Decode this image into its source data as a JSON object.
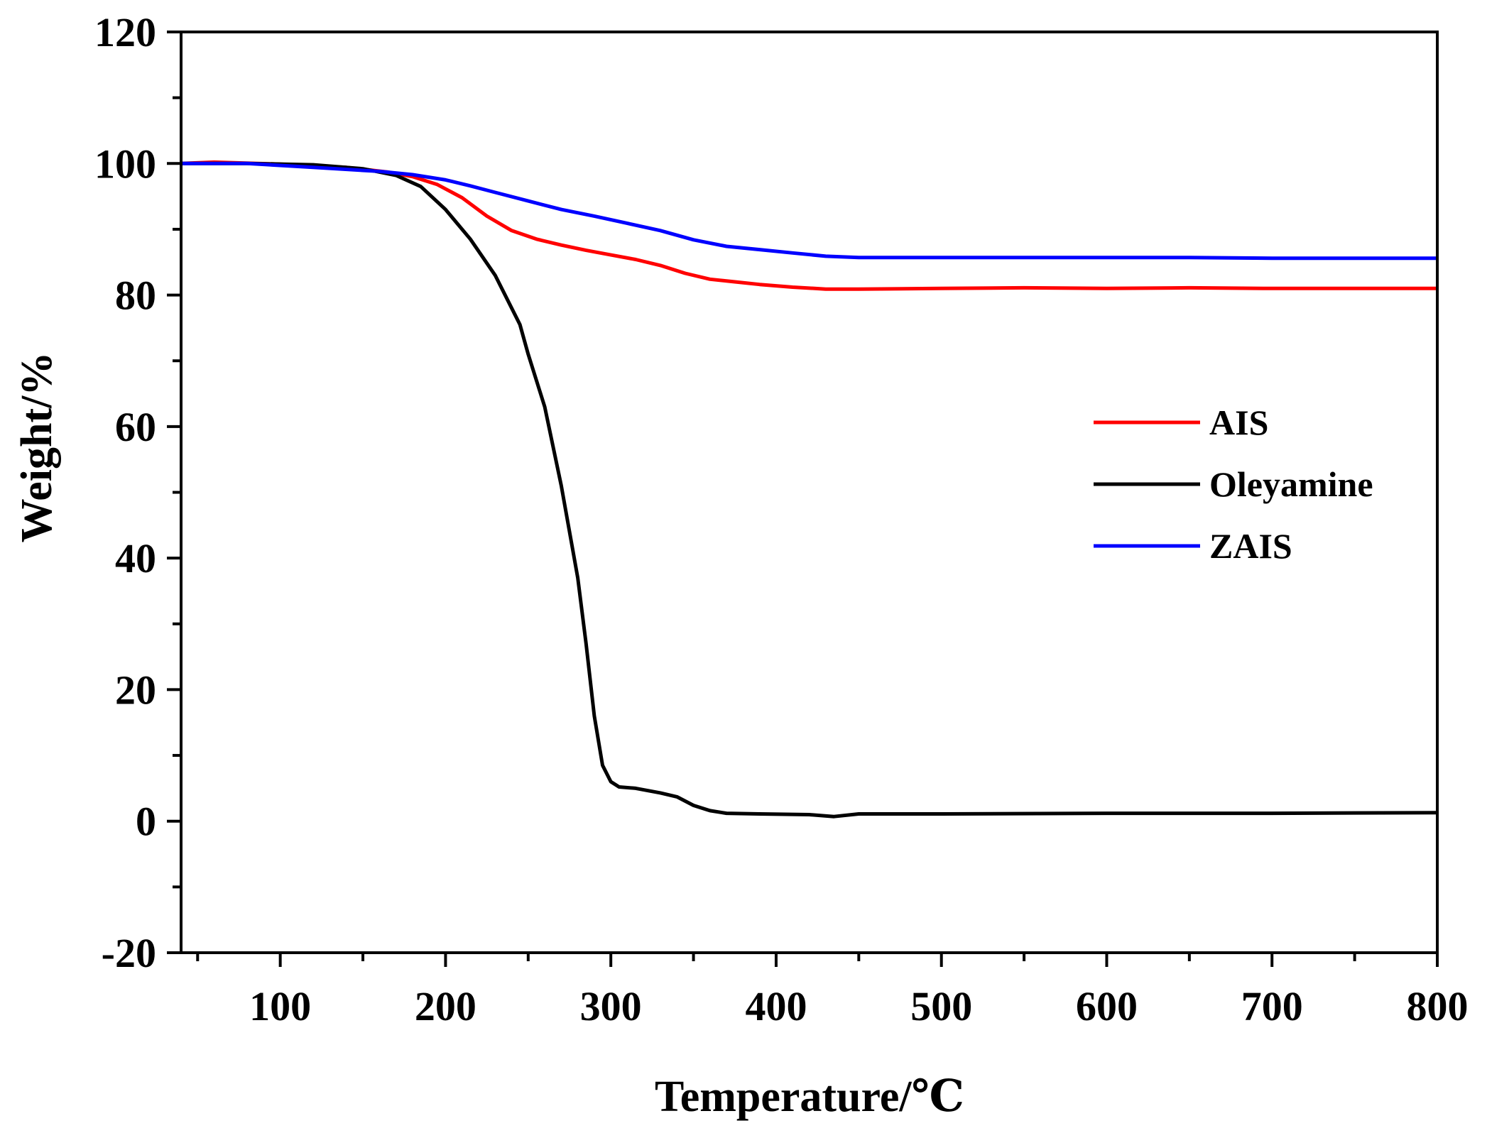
{
  "chart_data": {
    "type": "line",
    "title": "",
    "xlabel": "Temperature/℃",
    "ylabel": "Weight/%",
    "xlim": [
      40,
      800
    ],
    "ylim": [
      -20,
      120
    ],
    "x_ticks": [
      100,
      200,
      300,
      400,
      500,
      600,
      700,
      800
    ],
    "x_minor_ticks": [
      50,
      150,
      250,
      350,
      450,
      550,
      650,
      750
    ],
    "y_ticks": [
      -20,
      0,
      20,
      40,
      60,
      80,
      100,
      120
    ],
    "y_minor_ticks": [
      -10,
      10,
      30,
      50,
      70,
      90,
      110
    ],
    "grid": false,
    "legend_position": "right",
    "series": [
      {
        "name": "AIS",
        "color": "#ff0000",
        "points": [
          [
            40,
            100
          ],
          [
            60,
            100.2
          ],
          [
            100,
            99.9
          ],
          [
            140,
            99.4
          ],
          [
            165,
            98.7
          ],
          [
            180,
            98.0
          ],
          [
            195,
            96.8
          ],
          [
            210,
            94.8
          ],
          [
            225,
            92.0
          ],
          [
            240,
            89.8
          ],
          [
            255,
            88.5
          ],
          [
            270,
            87.6
          ],
          [
            285,
            86.8
          ],
          [
            300,
            86.1
          ],
          [
            315,
            85.4
          ],
          [
            330,
            84.5
          ],
          [
            345,
            83.3
          ],
          [
            360,
            82.4
          ],
          [
            375,
            82.0
          ],
          [
            390,
            81.6
          ],
          [
            410,
            81.2
          ],
          [
            430,
            80.9
          ],
          [
            450,
            80.9
          ],
          [
            500,
            81.0
          ],
          [
            550,
            81.1
          ],
          [
            600,
            81.0
          ],
          [
            650,
            81.1
          ],
          [
            700,
            81.0
          ],
          [
            750,
            81.0
          ],
          [
            800,
            81.0
          ]
        ]
      },
      {
        "name": "Oleyamine",
        "color": "#000000",
        "points": [
          [
            40,
            100
          ],
          [
            80,
            100
          ],
          [
            120,
            99.8
          ],
          [
            150,
            99.2
          ],
          [
            170,
            98.2
          ],
          [
            185,
            96.5
          ],
          [
            200,
            93.0
          ],
          [
            215,
            88.5
          ],
          [
            230,
            83.0
          ],
          [
            245,
            75.5
          ],
          [
            250,
            71.0
          ],
          [
            260,
            63.0
          ],
          [
            270,
            51.0
          ],
          [
            280,
            37.0
          ],
          [
            285,
            27.0
          ],
          [
            290,
            16.0
          ],
          [
            295,
            8.5
          ],
          [
            300,
            6.0
          ],
          [
            305,
            5.2
          ],
          [
            315,
            5.0
          ],
          [
            330,
            4.3
          ],
          [
            340,
            3.7
          ],
          [
            350,
            2.4
          ],
          [
            360,
            1.6
          ],
          [
            370,
            1.2
          ],
          [
            390,
            1.1
          ],
          [
            420,
            1.0
          ],
          [
            435,
            0.7
          ],
          [
            450,
            1.1
          ],
          [
            500,
            1.1
          ],
          [
            600,
            1.2
          ],
          [
            700,
            1.2
          ],
          [
            800,
            1.3
          ]
        ]
      },
      {
        "name": "ZAIS",
        "color": "#0000ff",
        "points": [
          [
            40,
            100
          ],
          [
            80,
            100
          ],
          [
            120,
            99.4
          ],
          [
            160,
            98.8
          ],
          [
            180,
            98.3
          ],
          [
            200,
            97.5
          ],
          [
            215,
            96.6
          ],
          [
            230,
            95.6
          ],
          [
            250,
            94.3
          ],
          [
            270,
            93.0
          ],
          [
            290,
            92.0
          ],
          [
            310,
            90.9
          ],
          [
            330,
            89.8
          ],
          [
            350,
            88.4
          ],
          [
            370,
            87.4
          ],
          [
            390,
            86.9
          ],
          [
            410,
            86.4
          ],
          [
            430,
            85.9
          ],
          [
            450,
            85.7
          ],
          [
            500,
            85.7
          ],
          [
            550,
            85.7
          ],
          [
            600,
            85.7
          ],
          [
            650,
            85.7
          ],
          [
            700,
            85.6
          ],
          [
            750,
            85.6
          ],
          [
            800,
            85.6
          ]
        ]
      }
    ]
  }
}
